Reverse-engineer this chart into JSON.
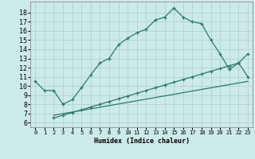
{
  "xlabel": "Humidex (Indice chaleur)",
  "bg_color": "#cceae8",
  "grid_color": "#afd4d0",
  "line_color": "#2a7a6a",
  "xlim": [
    -0.5,
    23.5
  ],
  "ylim": [
    5.5,
    19.2
  ],
  "xticks": [
    0,
    1,
    2,
    3,
    4,
    5,
    6,
    7,
    8,
    9,
    10,
    11,
    12,
    13,
    14,
    15,
    16,
    17,
    18,
    19,
    20,
    21,
    22,
    23
  ],
  "yticks": [
    6,
    7,
    8,
    9,
    10,
    11,
    12,
    13,
    14,
    15,
    16,
    17,
    18
  ],
  "line1_x": [
    0,
    1,
    2,
    3,
    4,
    5,
    6,
    7,
    8,
    9,
    10,
    11,
    12,
    13,
    14,
    15,
    16,
    17,
    18,
    19,
    20,
    21,
    22,
    23
  ],
  "line1_y": [
    10.5,
    9.5,
    9.5,
    8.0,
    8.5,
    9.8,
    11.2,
    12.5,
    13.0,
    14.5,
    15.2,
    15.8,
    16.2,
    17.2,
    17.5,
    18.5,
    17.5,
    17.0,
    16.8,
    15.0,
    13.5,
    11.8,
    12.5,
    11.0
  ],
  "line2_x": [
    2,
    3,
    4,
    5,
    6,
    7,
    8,
    9,
    10,
    11,
    12,
    13,
    14,
    15,
    16,
    17,
    18,
    19,
    20,
    21,
    22,
    23
  ],
  "line2_y": [
    6.5,
    6.8,
    7.1,
    7.4,
    7.7,
    8.0,
    8.3,
    8.6,
    8.9,
    9.2,
    9.5,
    9.8,
    10.1,
    10.4,
    10.7,
    11.0,
    11.3,
    11.6,
    11.9,
    12.2,
    12.5,
    13.5
  ],
  "line3_x": [
    2,
    3,
    23
  ],
  "line3_y": [
    6.8,
    6.3,
    11.0
  ],
  "line4_x": [
    2,
    23
  ],
  "line4_y": [
    6.8,
    10.5
  ]
}
